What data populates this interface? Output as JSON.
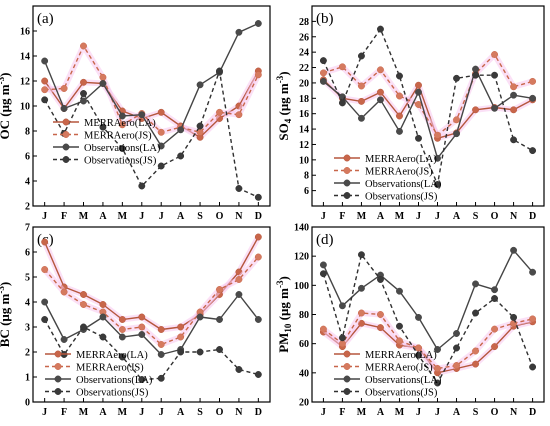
{
  "legend": [
    {
      "label": "MERRAero(LA)",
      "color": "#b5563d",
      "dash": false,
      "marker_fill": "#c8664a"
    },
    {
      "label": "MERRAero(JS)",
      "color": "#c8664a",
      "dash": true,
      "marker_fill": "#d57a5f"
    },
    {
      "label": "Observations(LA)",
      "color": "#454545",
      "dash": false,
      "marker_fill": "#4a4a4a"
    },
    {
      "label": "Observations(JS)",
      "color": "#303030",
      "dash": true,
      "marker_fill": "#3a3a3a"
    }
  ],
  "highlight_color": "#f7c6ee",
  "chart_data": [
    {
      "type": "line",
      "panel_label": "(a)",
      "ylabel_main": "OC",
      "ylabel_sub": "",
      "ylabel_unit_pre": "(μg m",
      "ylabel_unit_sup": "-3",
      "ylabel_unit_post": ")",
      "categories": [
        "J",
        "F",
        "M",
        "A",
        "M",
        "J",
        "J",
        "A",
        "S",
        "O",
        "N",
        "D"
      ],
      "ylim": [
        2,
        18
      ],
      "yticks": [
        2,
        4,
        6,
        8,
        10,
        12,
        14,
        16
      ],
      "legend_position": "upper-center",
      "series": [
        {
          "name": "MERRAero(LA)",
          "values": [
            12.0,
            9.8,
            11.9,
            11.8,
            9.6,
            9.0,
            9.5,
            8.4,
            7.5,
            9.0,
            10.0,
            12.8
          ]
        },
        {
          "name": "MERRAero(JS)",
          "values": [
            11.3,
            11.4,
            14.8,
            12.3,
            8.5,
            9.4,
            7.9,
            8.3,
            7.9,
            9.5,
            9.3,
            12.5
          ]
        },
        {
          "name": "Observations(LA)",
          "values": [
            13.6,
            9.8,
            10.4,
            11.8,
            9.2,
            9.3,
            6.8,
            8.1,
            11.7,
            12.7,
            15.9,
            16.6
          ]
        },
        {
          "name": "Observations(JS)",
          "values": [
            10.5,
            7.8,
            11.0,
            8.3,
            6.6,
            3.6,
            5.2,
            6.0,
            8.4,
            12.8,
            3.4,
            2.7
          ]
        }
      ]
    },
    {
      "type": "line",
      "panel_label": "(b)",
      "ylabel_main": "SO",
      "ylabel_sub": "4",
      "ylabel_unit_pre": "(μg m",
      "ylabel_unit_sup": "-3",
      "ylabel_unit_post": ")",
      "categories": [
        "J",
        "F",
        "M",
        "A",
        "M",
        "J",
        "J",
        "A",
        "S",
        "O",
        "N",
        "D"
      ],
      "ylim": [
        4,
        30
      ],
      "yticks": [
        6,
        8,
        10,
        12,
        14,
        16,
        18,
        20,
        22,
        24,
        26,
        28
      ],
      "legend_position": "lower-center",
      "series": [
        {
          "name": "MERRAero(LA)",
          "values": [
            20.4,
            18.0,
            17.6,
            18.8,
            15.7,
            19.7,
            12.8,
            13.5,
            16.5,
            16.8,
            16.5,
            17.8
          ]
        },
        {
          "name": "MERRAero(JS)",
          "values": [
            21.3,
            22.1,
            19.6,
            21.7,
            18.3,
            17.2,
            13.2,
            15.2,
            21.2,
            23.7,
            19.5,
            20.2
          ]
        },
        {
          "name": "Observations(LA)",
          "values": [
            20.2,
            18.2,
            15.4,
            17.8,
            13.7,
            18.8,
            10.2,
            13.4,
            21.8,
            16.7,
            18.4,
            18.0
          ]
        },
        {
          "name": "Observations(JS)",
          "values": [
            22.9,
            17.4,
            23.5,
            27.0,
            20.9,
            12.8,
            6.8,
            20.6,
            21.0,
            21.0,
            12.6,
            11.2
          ]
        }
      ]
    },
    {
      "type": "line",
      "panel_label": "(c)",
      "ylabel_main": "BC",
      "ylabel_sub": "",
      "ylabel_unit_pre": "(μg m",
      "ylabel_unit_sup": "-3",
      "ylabel_unit_post": ")",
      "categories": [
        "J",
        "F",
        "M",
        "A",
        "M",
        "J",
        "J",
        "A",
        "S",
        "O",
        "N",
        "D"
      ],
      "ylim": [
        0,
        7
      ],
      "yticks": [
        0,
        1,
        2,
        3,
        4,
        5,
        6,
        7
      ],
      "legend_position": "lower-left",
      "series": [
        {
          "name": "MERRAero(LA)",
          "values": [
            6.4,
            4.6,
            4.3,
            3.9,
            3.3,
            3.4,
            2.9,
            3.0,
            3.5,
            4.3,
            5.2,
            6.6
          ]
        },
        {
          "name": "MERRAero(JS)",
          "values": [
            5.3,
            4.4,
            3.9,
            3.6,
            2.9,
            3.0,
            2.3,
            2.6,
            3.6,
            4.5,
            4.9,
            5.8
          ]
        },
        {
          "name": "Observations(LA)",
          "values": [
            4.0,
            2.5,
            2.9,
            3.4,
            2.6,
            2.7,
            1.9,
            2.1,
            3.4,
            3.3,
            4.3,
            3.3
          ]
        },
        {
          "name": "Observations(JS)",
          "values": [
            3.3,
            1.9,
            3.0,
            2.6,
            1.8,
            0.9,
            0.95,
            2.0,
            2.0,
            2.1,
            1.3,
            1.1
          ]
        }
      ]
    },
    {
      "type": "line",
      "panel_label": "(d)",
      "ylabel_main": "PM",
      "ylabel_sub": "10",
      "ylabel_unit_pre": "(μg m",
      "ylabel_unit_sup": "-3",
      "ylabel_unit_post": ")",
      "categories": [
        "J",
        "F",
        "M",
        "A",
        "M",
        "J",
        "J",
        "A",
        "S",
        "O",
        "N",
        "D"
      ],
      "ylim": [
        20,
        140
      ],
      "yticks": [
        20,
        40,
        60,
        80,
        100,
        120,
        140
      ],
      "legend_position": "lower-center",
      "series": [
        {
          "name": "MERRAero(LA)",
          "values": [
            68,
            58,
            74,
            71,
            59,
            57,
            40,
            43,
            46,
            58,
            72,
            75
          ]
        },
        {
          "name": "MERRAero(JS)",
          "values": [
            70,
            60,
            81,
            80,
            62,
            57,
            43,
            45,
            55,
            70,
            74,
            77
          ]
        },
        {
          "name": "Observations(LA)",
          "values": [
            114,
            86,
            98,
            107,
            96,
            78,
            56,
            67,
            101,
            97,
            124,
            109
          ]
        },
        {
          "name": "Observations(JS)",
          "values": [
            108,
            64,
            121,
            104,
            72,
            52,
            33,
            57,
            81,
            91,
            78,
            44
          ]
        }
      ]
    }
  ]
}
